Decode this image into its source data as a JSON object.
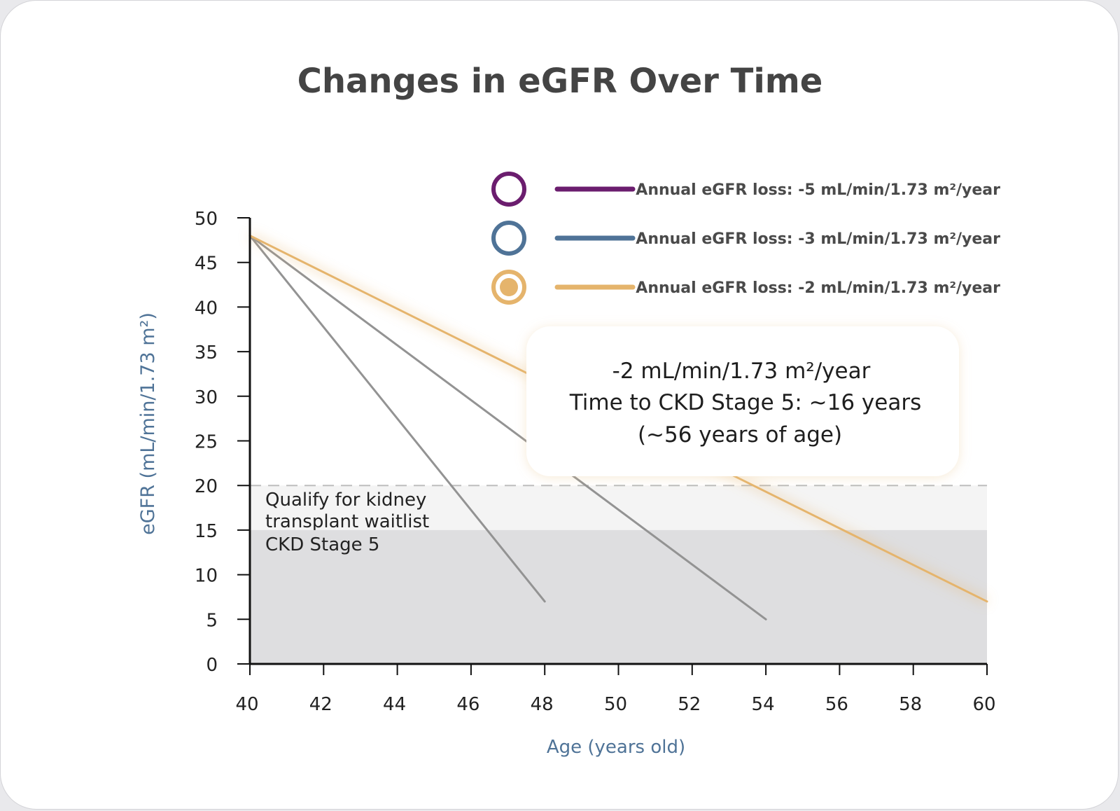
{
  "chart_data": {
    "type": "line",
    "title": "Changes in eGFR Over Time",
    "xlabel": "Age (years old)",
    "ylabel": "eGFR (mL/min/1.73 m²)",
    "xlim": [
      40,
      60
    ],
    "ylim": [
      0,
      50
    ],
    "x_ticks": [
      40,
      42,
      44,
      46,
      48,
      50,
      52,
      54,
      56,
      58,
      60
    ],
    "y_ticks": [
      0,
      5,
      10,
      15,
      20,
      25,
      30,
      35,
      40,
      45,
      50
    ],
    "series": [
      {
        "name": "Annual eGFR loss: -5 mL/min/1.73 m²/year",
        "color": "#6b1d6e",
        "marker": "hollow-circle",
        "line_color": "#939393",
        "x": [
          40,
          48
        ],
        "y": [
          48,
          7
        ]
      },
      {
        "name": "Annual eGFR loss: -3 mL/min/1.73 m²/year",
        "color": "#4f7397",
        "marker": "hollow-circle",
        "line_color": "#939393",
        "x": [
          40,
          54
        ],
        "y": [
          48,
          5
        ]
      },
      {
        "name": "Annual eGFR loss: -2 mL/min/1.73 m²/year",
        "color": "#e5b46c",
        "marker": "filled-circle",
        "line_color": "#e5b46c",
        "x": [
          40,
          60
        ],
        "y": [
          48,
          7
        ]
      }
    ],
    "bands": [
      {
        "label_lines": [
          "Qualify for kidney",
          "transplant waitlist"
        ],
        "y_from": 15,
        "y_to": 20,
        "color": "#f4f4f4"
      },
      {
        "label_lines": [
          "CKD Stage 5"
        ],
        "y_from": 0,
        "y_to": 15,
        "color": "#dedee0"
      }
    ],
    "reference_line": {
      "y": 20,
      "style": "dashed",
      "color": "#bdbdbd"
    },
    "callout": {
      "lines": [
        "-2 mL/min/1.73 m²/year",
        "Time to CKD Stage 5: ~16 years",
        "(~56 years of age)"
      ]
    },
    "grid": false,
    "legend_position": "top-right"
  }
}
